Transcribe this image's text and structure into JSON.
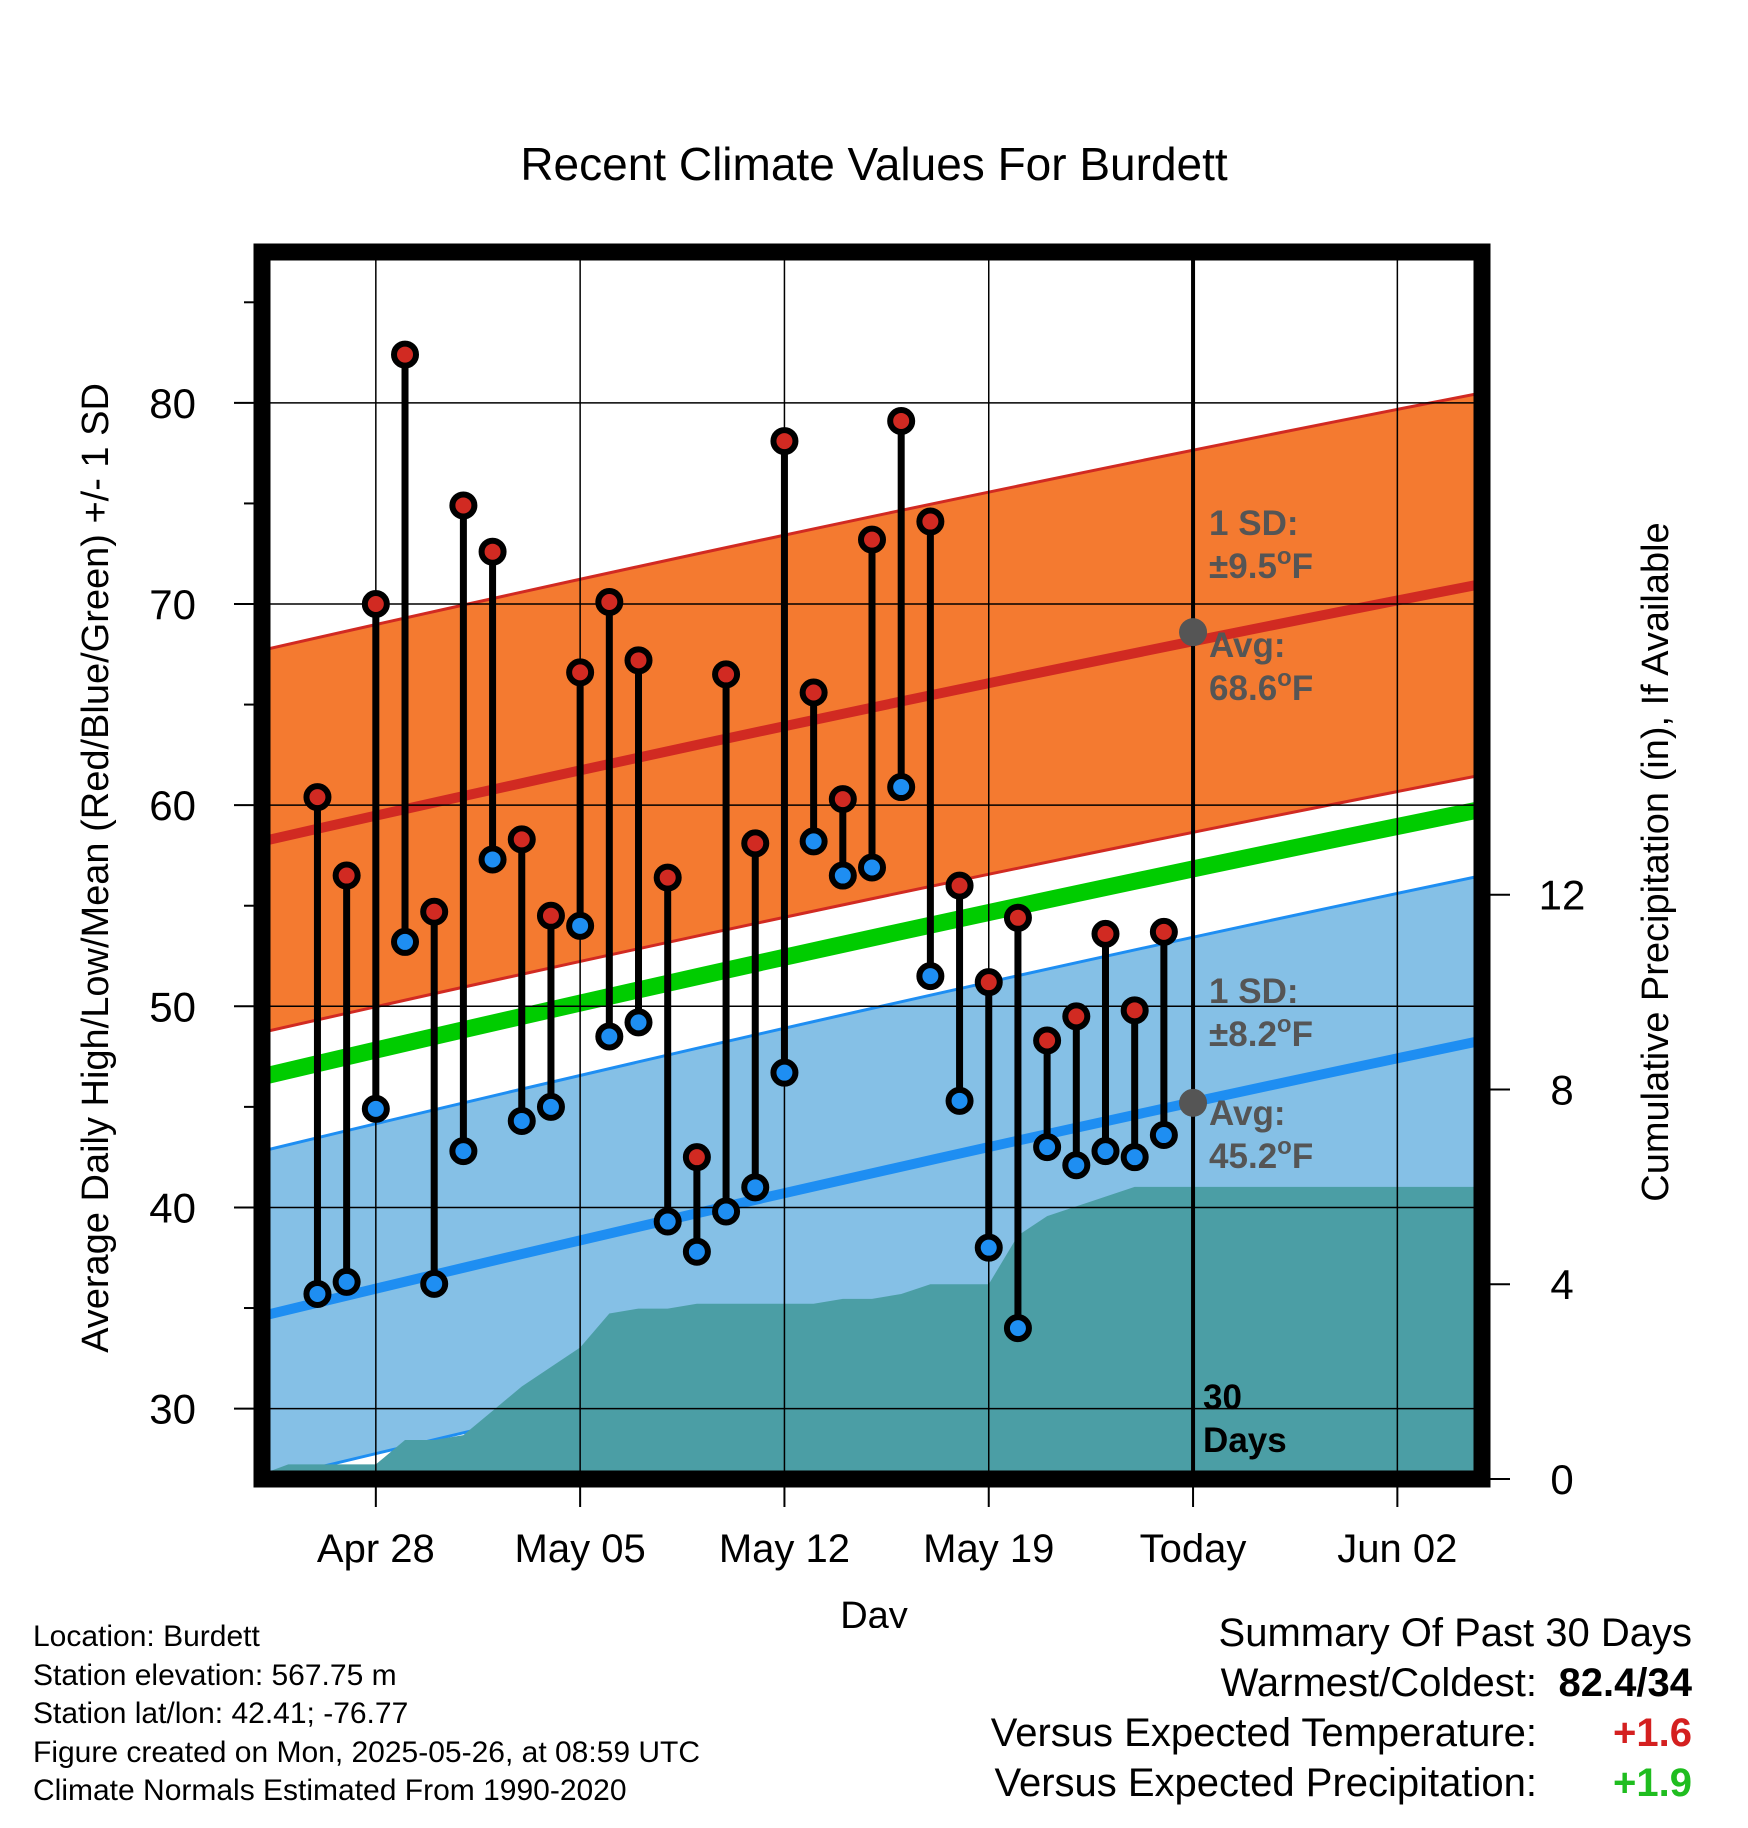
{
  "chart_data": {
    "type": "line",
    "title": "Recent Climate Values For Burdett",
    "xlabel": "Day",
    "ylabel": "Average Daily High/Low/Mean (Red/Blue/Green) +/- 1 SD",
    "y2label": "Cumulative Precipitation (in), If Available",
    "xlim": [
      -1.9,
      39.9
    ],
    "ylim": [
      26.5,
      87.5
    ],
    "y2lim": [
      0,
      25.2
    ],
    "x_ticks": [
      {
        "x": 2,
        "label": "Apr 28"
      },
      {
        "x": 9,
        "label": "May 05"
      },
      {
        "x": 16,
        "label": "May 12"
      },
      {
        "x": 23,
        "label": "May 19"
      },
      {
        "x": 30,
        "label": "Today"
      },
      {
        "x": 37,
        "label": "Jun 02"
      }
    ],
    "y_ticks": [
      30,
      40,
      50,
      60,
      70,
      80
    ],
    "y2_ticks": [
      0,
      4,
      8,
      12
    ],
    "today_x": 30,
    "grid": true,
    "days": [
      0,
      1,
      2,
      3,
      4,
      5,
      6,
      7,
      8,
      9,
      10,
      11,
      12,
      13,
      14,
      15,
      16,
      17,
      18,
      19,
      20,
      21,
      22,
      23,
      24,
      25,
      26,
      27,
      28,
      29
    ],
    "highs": [
      60.4,
      56.5,
      70,
      82.4,
      54.7,
      74.9,
      72.6,
      58.3,
      54.5,
      66.6,
      70.1,
      67.2,
      56.4,
      42.5,
      66.5,
      58.1,
      78.1,
      65.6,
      60.3,
      73.2,
      79.1,
      74.1,
      56,
      51.2,
      54.4,
      48.3,
      49.5,
      53.6,
      49.8,
      53.7
    ],
    "lows": [
      35.7,
      36.3,
      44.9,
      53.2,
      36.2,
      42.8,
      57.3,
      44.3,
      45,
      54,
      48.5,
      49.2,
      39.3,
      37.8,
      39.8,
      41,
      46.7,
      58.2,
      56.5,
      56.9,
      60.9,
      51.5,
      45.3,
      38,
      34,
      43,
      42.1,
      42.8,
      42.5,
      43.6
    ],
    "normals": {
      "x": [
        -1.9,
        39.9
      ],
      "high_mean": [
        58.2,
        71.0
      ],
      "high_sd": 9.5,
      "low_mean": [
        34.6,
        48.3
      ],
      "low_sd": 8.2,
      "mean": [
        46.5,
        59.8
      ]
    },
    "precip_cumulative": {
      "x": [
        -1.9,
        -1,
        0,
        1,
        2,
        3,
        4,
        5,
        6,
        7,
        8,
        9,
        10,
        11,
        12,
        13,
        14,
        15,
        16,
        17,
        18,
        19,
        20,
        21,
        22,
        23,
        24,
        25,
        26,
        27,
        28,
        29,
        30,
        35,
        39.9
      ],
      "y": [
        0.1,
        0.3,
        0.3,
        0.3,
        0.3,
        0.8,
        0.8,
        0.9,
        1.4,
        1.9,
        2.3,
        2.7,
        3.4,
        3.5,
        3.5,
        3.6,
        3.6,
        3.6,
        3.6,
        3.6,
        3.7,
        3.7,
        3.8,
        4,
        4,
        4,
        5,
        5.4,
        5.6,
        5.8,
        6,
        6,
        6,
        6,
        6
      ]
    },
    "annotations": {
      "high_sd_line1": "1 SD:",
      "high_sd_line2": "±9.5°F",
      "high_avg_line1": "Avg:",
      "high_avg_line2": "68.6°F",
      "low_sd_line1": "1 SD:",
      "low_sd_line2": "±8.2°F",
      "low_avg_line1": "Avg:",
      "low_avg_line2": "45.2°F",
      "days_line1": "30",
      "days_line2": "Days",
      "high_today": 68.6,
      "low_today": 45.2
    },
    "colors": {
      "high_band": "#f47a30",
      "high_line": "#d12a22",
      "low_band": "#85c0e6",
      "low_line": "#1e8ef2",
      "mean_line": "#00cc00",
      "precip": "#4b9ea5",
      "high_dot": "#d12a22",
      "low_dot": "#1e8ef2",
      "annotation": "#555555"
    }
  },
  "info": {
    "location": "Location: Burdett",
    "elevation": "Station elevation: 567.75 m",
    "latlon": "Station lat/lon: 42.41; -76.77",
    "created": "Figure created on Mon, 2025-05-26, at 08:59 UTC",
    "normals": "Climate Normals Estimated From 1990-2020"
  },
  "summary": {
    "title": "Summary Of Past 30 Days",
    "warm_cold_label": "Warmest/Coldest:",
    "warm_cold_value": "82.4/34",
    "temp_label": "Versus Expected Temperature:",
    "temp_value": "+1.6",
    "precip_label": "Versus Expected Precipitation:",
    "precip_value": "+1.9"
  }
}
